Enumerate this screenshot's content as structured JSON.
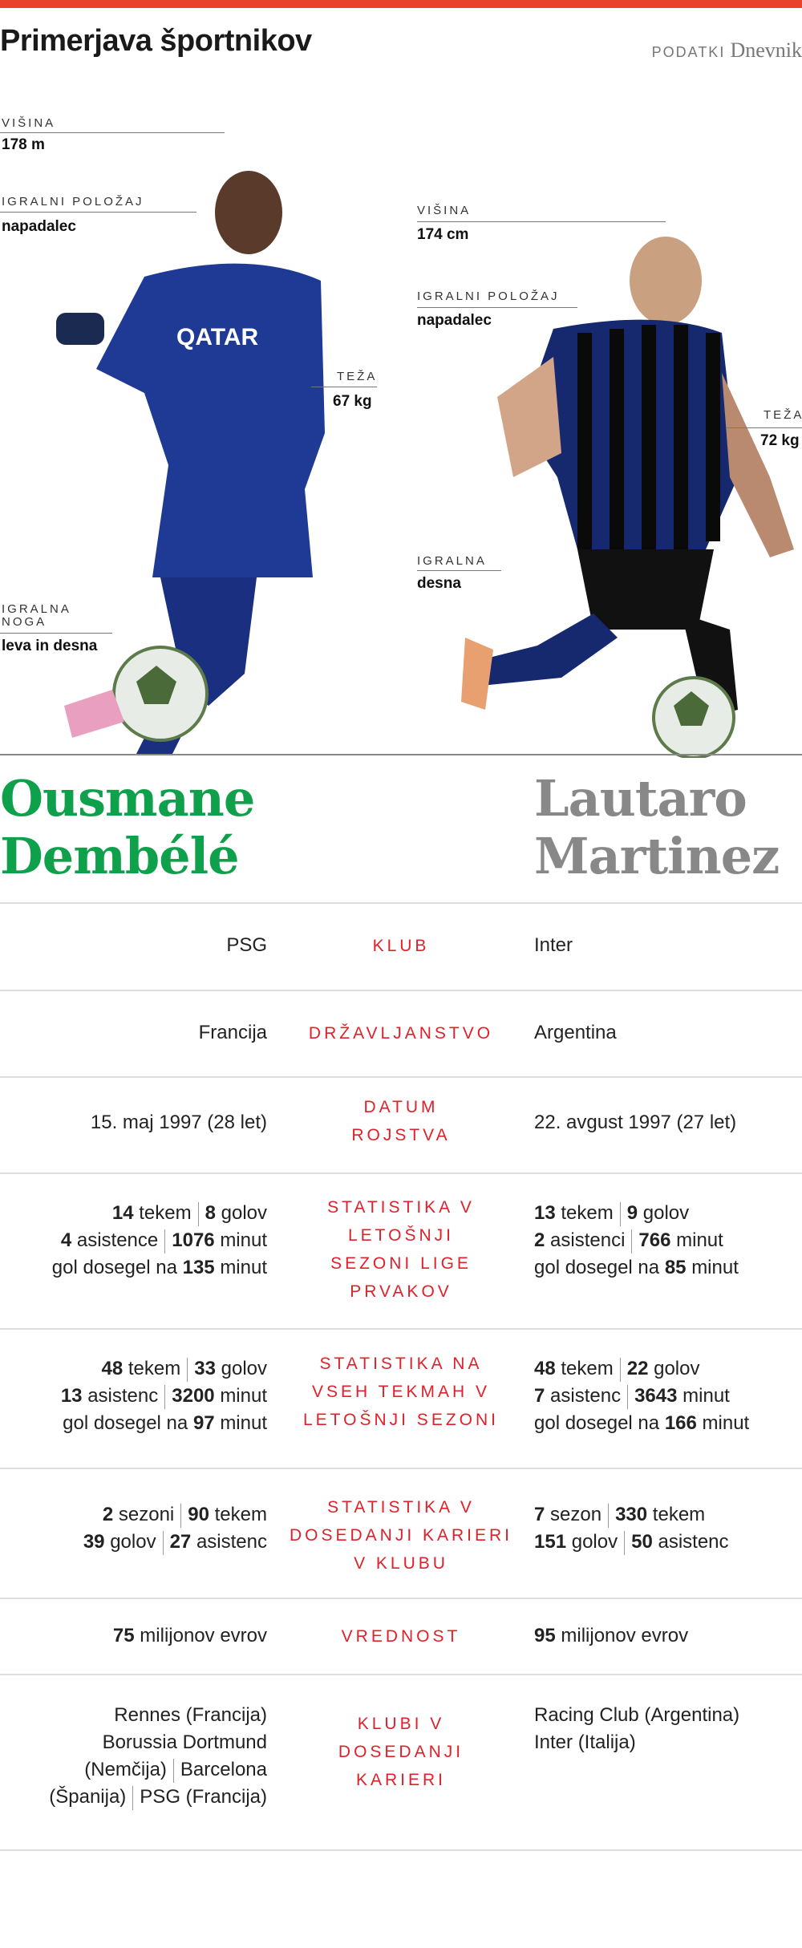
{
  "header": {
    "title": "Primerjava športnikov",
    "source_label": "PODATKI",
    "source_name": "Dnevnik"
  },
  "colors": {
    "accent": "#e8432a",
    "left_player": "#0ea04a",
    "right_player": "#888888",
    "label": "#e0202a"
  },
  "left_player": {
    "first_name": "Ousmane",
    "last_name": "Dembélé",
    "height_label": "VIŠINA",
    "height": "178 m",
    "position_label": "IGRALNI POLOŽAJ",
    "position": "napadalec",
    "weight_label": "TEŽA",
    "weight": "67 kg",
    "foot_label_1": "IGRALNA",
    "foot_label_2": "NOGA",
    "foot": "leva in desna"
  },
  "right_player": {
    "first_name": "Lautaro",
    "last_name": "Martinez",
    "height_label": "VIŠINA",
    "height": "174 cm",
    "position_label": "IGRALNI POLOŽAJ",
    "position": "napadalec",
    "weight_label": "TEŽA",
    "weight": "72 kg",
    "foot_label": "IGRALNA",
    "foot": "desna"
  },
  "rows": [
    {
      "label": "KLUB",
      "left": "PSG",
      "right": "Inter"
    },
    {
      "label": "DRŽAVLJANSTVO",
      "left": "Francija",
      "right": "Argentina"
    },
    {
      "label": "DATUM ROJSTVA",
      "left": "15. maj 1997 (28 let)",
      "right": "22. avgust 1997 (27 let)"
    },
    {
      "label": "STATISTIKA V LETOŠNJI SEZONI LIGE PRVAKOV",
      "left": {
        "games": "14",
        "games_u": "tekem",
        "goals": "8",
        "goals_u": "golov",
        "assists": "4",
        "assists_u": "asistence",
        "minutes": "1076",
        "minutes_u": "minut",
        "gpm_pre": "gol dosegel na",
        "gpm": "135",
        "gpm_u": "minut"
      },
      "right": {
        "games": "13",
        "games_u": "tekem",
        "goals": "9",
        "goals_u": "golov",
        "assists": "2",
        "assists_u": "asistenci",
        "minutes": "766",
        "minutes_u": "minut",
        "gpm_pre": "gol dosegel na",
        "gpm": "85",
        "gpm_u": "minut"
      }
    },
    {
      "label": "STATISTIKA NA VSEH TEKMAH V LETOŠNJI SEZONI",
      "left": {
        "games": "48",
        "games_u": "tekem",
        "goals": "33",
        "goals_u": "golov",
        "assists": "13",
        "assists_u": "asistenc",
        "minutes": "3200",
        "minutes_u": "minut",
        "gpm_pre": "gol dosegel na",
        "gpm": "97",
        "gpm_u": "minut"
      },
      "right": {
        "games": "48",
        "games_u": "tekem",
        "goals": "22",
        "goals_u": "golov",
        "assists": "7",
        "assists_u": "asistenc",
        "minutes": "3643",
        "minutes_u": "minut",
        "gpm_pre": "gol dosegel na",
        "gpm": "166",
        "gpm_u": "minut"
      }
    },
    {
      "label": "STATISTIKA V DOSEDANJI KARIERI V KLUBU",
      "left": {
        "seasons": "2",
        "seasons_u": "sezoni",
        "games": "90",
        "games_u": "tekem",
        "goals": "39",
        "goals_u": "golov",
        "assists": "27",
        "assists_u": "asistenc"
      },
      "right": {
        "seasons": "7",
        "seasons_u": "sezon",
        "games": "330",
        "games_u": "tekem",
        "goals": "151",
        "goals_u": "golov",
        "assists": "50",
        "assists_u": "asistenc"
      }
    },
    {
      "label": "VREDNOST",
      "left": {
        "num": "75",
        "unit": "milijonov evrov"
      },
      "right": {
        "num": "95",
        "unit": "milijonov evrov"
      }
    },
    {
      "label": "KLUBI V DOSEDANJI KARIERI",
      "left": {
        "line1": "Rennes (Francija)",
        "line2": "Borussia Dortmund",
        "line3a": "(Nemčija)",
        "line3b": "Barcelona",
        "line4a": "(Španija)",
        "line4b": "PSG (Francija)"
      },
      "right": {
        "line1": "Racing Club (Argentina)",
        "line2": "Inter (Italija)"
      }
    }
  ]
}
